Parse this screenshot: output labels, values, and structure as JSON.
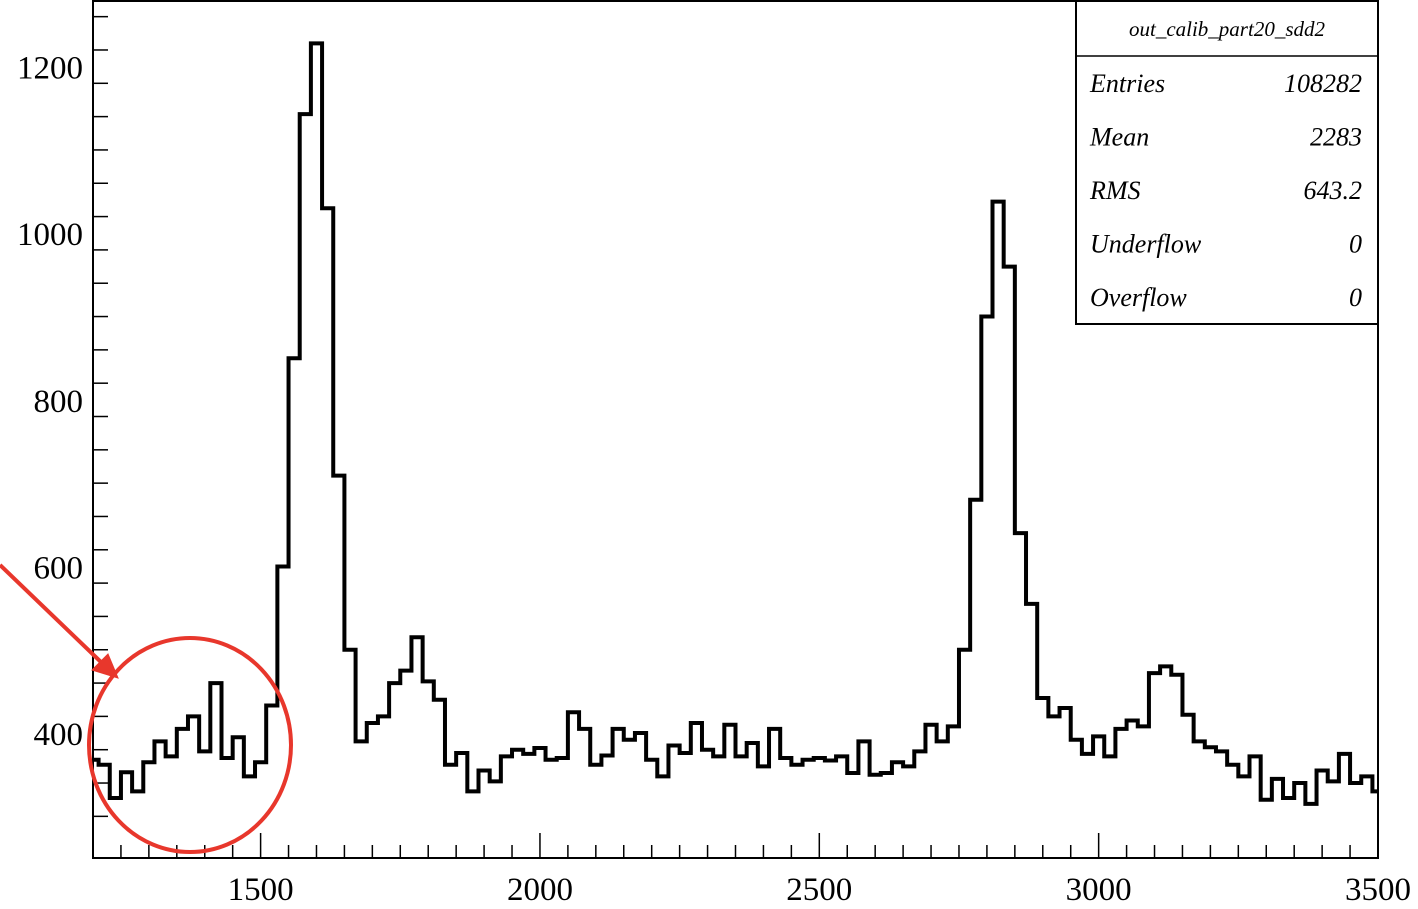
{
  "chart_data": {
    "type": "histogram",
    "title": "",
    "xlabel": "",
    "ylabel": "",
    "xlim": [
      1200,
      3500
    ],
    "ylim": [
      250,
      1280
    ],
    "x_ticks": [
      1500,
      2000,
      2500,
      3000,
      3500
    ],
    "y_ticks": [
      400,
      600,
      800,
      1000,
      1200
    ],
    "bin_width": 20,
    "bins": [
      {
        "x": 1200,
        "y": 368
      },
      {
        "x": 1210,
        "y": 362
      },
      {
        "x": 1230,
        "y": 322
      },
      {
        "x": 1250,
        "y": 353
      },
      {
        "x": 1270,
        "y": 330
      },
      {
        "x": 1290,
        "y": 365
      },
      {
        "x": 1310,
        "y": 390
      },
      {
        "x": 1330,
        "y": 372
      },
      {
        "x": 1350,
        "y": 405
      },
      {
        "x": 1370,
        "y": 420
      },
      {
        "x": 1390,
        "y": 378
      },
      {
        "x": 1410,
        "y": 460
      },
      {
        "x": 1430,
        "y": 370
      },
      {
        "x": 1450,
        "y": 395
      },
      {
        "x": 1470,
        "y": 348
      },
      {
        "x": 1490,
        "y": 365
      },
      {
        "x": 1510,
        "y": 433
      },
      {
        "x": 1530,
        "y": 600
      },
      {
        "x": 1550,
        "y": 850
      },
      {
        "x": 1570,
        "y": 1143
      },
      {
        "x": 1590,
        "y": 1228
      },
      {
        "x": 1610,
        "y": 1030
      },
      {
        "x": 1630,
        "y": 709
      },
      {
        "x": 1650,
        "y": 500
      },
      {
        "x": 1670,
        "y": 390
      },
      {
        "x": 1690,
        "y": 412
      },
      {
        "x": 1710,
        "y": 420
      },
      {
        "x": 1730,
        "y": 460
      },
      {
        "x": 1750,
        "y": 475
      },
      {
        "x": 1770,
        "y": 515
      },
      {
        "x": 1790,
        "y": 462
      },
      {
        "x": 1810,
        "y": 440
      },
      {
        "x": 1830,
        "y": 362
      },
      {
        "x": 1850,
        "y": 376
      },
      {
        "x": 1870,
        "y": 330
      },
      {
        "x": 1890,
        "y": 355
      },
      {
        "x": 1910,
        "y": 342
      },
      {
        "x": 1930,
        "y": 372
      },
      {
        "x": 1950,
        "y": 380
      },
      {
        "x": 1970,
        "y": 375
      },
      {
        "x": 1990,
        "y": 382
      },
      {
        "x": 2010,
        "y": 368
      },
      {
        "x": 2030,
        "y": 370
      },
      {
        "x": 2050,
        "y": 425
      },
      {
        "x": 2070,
        "y": 405
      },
      {
        "x": 2090,
        "y": 362
      },
      {
        "x": 2110,
        "y": 373
      },
      {
        "x": 2130,
        "y": 405
      },
      {
        "x": 2150,
        "y": 392
      },
      {
        "x": 2170,
        "y": 400
      },
      {
        "x": 2190,
        "y": 368
      },
      {
        "x": 2210,
        "y": 348
      },
      {
        "x": 2230,
        "y": 385
      },
      {
        "x": 2250,
        "y": 376
      },
      {
        "x": 2270,
        "y": 412
      },
      {
        "x": 2290,
        "y": 380
      },
      {
        "x": 2310,
        "y": 372
      },
      {
        "x": 2330,
        "y": 410
      },
      {
        "x": 2350,
        "y": 372
      },
      {
        "x": 2370,
        "y": 388
      },
      {
        "x": 2390,
        "y": 360
      },
      {
        "x": 2410,
        "y": 405
      },
      {
        "x": 2430,
        "y": 370
      },
      {
        "x": 2450,
        "y": 362
      },
      {
        "x": 2470,
        "y": 368
      },
      {
        "x": 2490,
        "y": 370
      },
      {
        "x": 2510,
        "y": 367
      },
      {
        "x": 2530,
        "y": 372
      },
      {
        "x": 2550,
        "y": 352
      },
      {
        "x": 2570,
        "y": 390
      },
      {
        "x": 2590,
        "y": 350
      },
      {
        "x": 2610,
        "y": 352
      },
      {
        "x": 2630,
        "y": 365
      },
      {
        "x": 2650,
        "y": 360
      },
      {
        "x": 2670,
        "y": 378
      },
      {
        "x": 2690,
        "y": 410
      },
      {
        "x": 2710,
        "y": 390
      },
      {
        "x": 2730,
        "y": 408
      },
      {
        "x": 2750,
        "y": 500
      },
      {
        "x": 2770,
        "y": 680
      },
      {
        "x": 2790,
        "y": 900
      },
      {
        "x": 2810,
        "y": 1038
      },
      {
        "x": 2830,
        "y": 960
      },
      {
        "x": 2850,
        "y": 640
      },
      {
        "x": 2870,
        "y": 555
      },
      {
        "x": 2890,
        "y": 442
      },
      {
        "x": 2910,
        "y": 420
      },
      {
        "x": 2930,
        "y": 430
      },
      {
        "x": 2950,
        "y": 392
      },
      {
        "x": 2970,
        "y": 375
      },
      {
        "x": 2990,
        "y": 396
      },
      {
        "x": 3010,
        "y": 372
      },
      {
        "x": 3030,
        "y": 405
      },
      {
        "x": 3050,
        "y": 415
      },
      {
        "x": 3070,
        "y": 408
      },
      {
        "x": 3090,
        "y": 472
      },
      {
        "x": 3110,
        "y": 480
      },
      {
        "x": 3130,
        "y": 470
      },
      {
        "x": 3150,
        "y": 422
      },
      {
        "x": 3170,
        "y": 390
      },
      {
        "x": 3190,
        "y": 383
      },
      {
        "x": 3210,
        "y": 378
      },
      {
        "x": 3230,
        "y": 362
      },
      {
        "x": 3250,
        "y": 348
      },
      {
        "x": 3270,
        "y": 372
      },
      {
        "x": 3290,
        "y": 320
      },
      {
        "x": 3310,
        "y": 345
      },
      {
        "x": 3330,
        "y": 322
      },
      {
        "x": 3350,
        "y": 340
      },
      {
        "x": 3370,
        "y": 315
      },
      {
        "x": 3390,
        "y": 355
      },
      {
        "x": 3410,
        "y": 342
      },
      {
        "x": 3430,
        "y": 375
      },
      {
        "x": 3450,
        "y": 340
      },
      {
        "x": 3470,
        "y": 348
      },
      {
        "x": 3490,
        "y": 330
      }
    ],
    "stats_box": {
      "title": "out_calib_part20_sdd2",
      "rows": [
        {
          "label": "Entries",
          "value": "108282"
        },
        {
          "label": "Mean",
          "value": "2283"
        },
        {
          "label": "RMS",
          "value": "643.2"
        },
        {
          "label": "Underflow",
          "value": "0"
        },
        {
          "label": "Overflow",
          "value": "0"
        }
      ]
    },
    "annotation": {
      "type": "circle-with-arrow",
      "color": "#e8372c",
      "target_x_range": [
        1200,
        1480
      ]
    }
  }
}
